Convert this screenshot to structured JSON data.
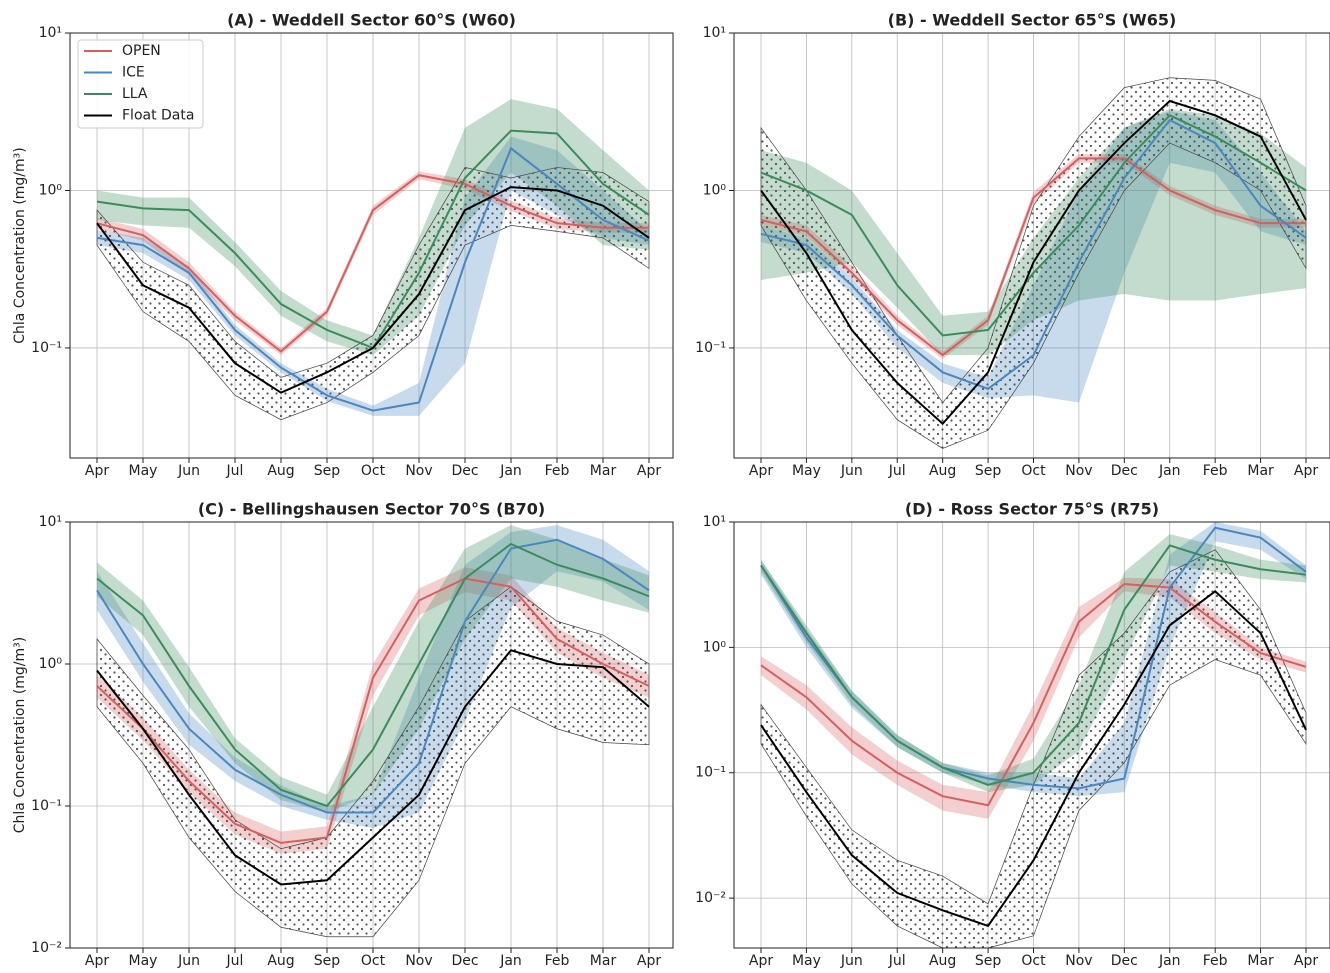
{
  "chart_data": [
    {
      "type": "line",
      "title": "(A) - Weddell Sector 60°S (W60)",
      "ylabel": "Chla Concentration (mg/m³)",
      "log_y": true,
      "grid": true,
      "legend": "upper left",
      "categories": [
        "Apr",
        "May",
        "Jun",
        "Jul",
        "Aug",
        "Sep",
        "Oct",
        "Nov",
        "Dec",
        "Jan",
        "Feb",
        "Mar",
        "Apr"
      ],
      "ylim": [
        0.02,
        10
      ],
      "yticks": [
        {
          "value": 0.1,
          "label": "10⁻¹"
        },
        {
          "value": 1,
          "label": "10⁰"
        },
        {
          "value": 10,
          "label": "10¹"
        }
      ],
      "series": [
        {
          "name": "OPEN",
          "color": "#d65f5f",
          "values": [
            0.62,
            0.52,
            0.32,
            0.16,
            0.095,
            0.17,
            0.75,
            1.25,
            1.1,
            0.8,
            0.62,
            0.58,
            0.58
          ],
          "lower": [
            0.57,
            0.48,
            0.29,
            0.15,
            0.09,
            0.16,
            0.7,
            1.18,
            1.02,
            0.74,
            0.57,
            0.54,
            0.54
          ],
          "upper": [
            0.67,
            0.57,
            0.35,
            0.17,
            0.1,
            0.18,
            0.8,
            1.32,
            1.18,
            0.86,
            0.67,
            0.62,
            0.62
          ]
        },
        {
          "name": "ICE",
          "color": "#4a87bf",
          "values": [
            0.5,
            0.45,
            0.3,
            0.13,
            0.075,
            0.05,
            0.04,
            0.045,
            0.35,
            1.85,
            1.1,
            0.65,
            0.48
          ],
          "lower": [
            0.45,
            0.4,
            0.27,
            0.12,
            0.07,
            0.046,
            0.037,
            0.037,
            0.08,
            1.0,
            0.7,
            0.5,
            0.45
          ],
          "upper": [
            0.56,
            0.5,
            0.33,
            0.14,
            0.08,
            0.055,
            0.043,
            0.06,
            0.9,
            2.2,
            1.8,
            1.0,
            0.55
          ]
        },
        {
          "name": "LLA",
          "color": "#3a8c5c",
          "values": [
            0.85,
            0.77,
            0.75,
            0.4,
            0.19,
            0.13,
            0.1,
            0.3,
            1.2,
            2.4,
            2.3,
            1.1,
            0.7
          ],
          "lower": [
            0.65,
            0.6,
            0.58,
            0.33,
            0.16,
            0.11,
            0.09,
            0.16,
            0.6,
            1.3,
            0.8,
            0.45,
            0.42
          ],
          "upper": [
            1.0,
            0.9,
            0.9,
            0.47,
            0.23,
            0.15,
            0.12,
            0.5,
            2.5,
            3.8,
            3.3,
            1.8,
            1.0
          ]
        },
        {
          "name": "Float Data",
          "color": "#000000",
          "values": [
            0.62,
            0.25,
            0.18,
            0.08,
            0.052,
            0.07,
            0.1,
            0.22,
            0.75,
            1.05,
            1.0,
            0.8,
            0.5
          ],
          "lower": [
            0.45,
            0.17,
            0.11,
            0.05,
            0.035,
            0.045,
            0.07,
            0.12,
            0.45,
            0.6,
            0.55,
            0.5,
            0.32
          ],
          "upper": [
            0.75,
            0.35,
            0.25,
            0.11,
            0.065,
            0.08,
            0.12,
            0.45,
            1.4,
            1.2,
            1.4,
            1.3,
            0.85
          ]
        }
      ]
    },
    {
      "type": "line",
      "title": "(B) - Weddell Sector 65°S (W65)",
      "log_y": true,
      "grid": true,
      "categories": [
        "Apr",
        "May",
        "Jun",
        "Jul",
        "Aug",
        "Sep",
        "Oct",
        "Nov",
        "Dec",
        "Jan",
        "Feb",
        "Mar",
        "Apr"
      ],
      "ylim": [
        0.02,
        10
      ],
      "yticks": [
        {
          "value": 0.1,
          "label": "10⁻¹"
        },
        {
          "value": 1,
          "label": "10⁰"
        },
        {
          "value": 10,
          "label": "10¹"
        }
      ],
      "series": [
        {
          "color": "#d65f5f",
          "values": [
            0.65,
            0.55,
            0.3,
            0.15,
            0.09,
            0.15,
            0.9,
            1.6,
            1.6,
            1.0,
            0.75,
            0.62,
            0.62
          ],
          "lower": [
            0.6,
            0.51,
            0.28,
            0.14,
            0.085,
            0.14,
            0.82,
            1.5,
            1.5,
            0.93,
            0.7,
            0.58,
            0.58
          ],
          "upper": [
            0.7,
            0.6,
            0.33,
            0.16,
            0.095,
            0.16,
            0.98,
            1.7,
            1.7,
            1.07,
            0.8,
            0.66,
            0.66
          ]
        },
        {
          "color": "#4a87bf",
          "values": [
            0.53,
            0.45,
            0.25,
            0.12,
            0.07,
            0.055,
            0.09,
            0.35,
            1.2,
            2.8,
            2.0,
            0.8,
            0.5
          ],
          "lower": [
            0.47,
            0.4,
            0.22,
            0.1,
            0.06,
            0.048,
            0.05,
            0.045,
            0.3,
            1.5,
            1.3,
            0.55,
            0.45
          ],
          "upper": [
            0.6,
            0.5,
            0.28,
            0.13,
            0.08,
            0.065,
            0.25,
            1.0,
            2.5,
            3.2,
            2.8,
            1.3,
            0.55
          ]
        },
        {
          "color": "#3a8c5c",
          "values": [
            1.3,
            1.0,
            0.7,
            0.25,
            0.12,
            0.13,
            0.3,
            0.6,
            1.5,
            3.0,
            2.2,
            1.5,
            1.0
          ],
          "lower": [
            0.27,
            0.3,
            0.35,
            0.18,
            0.09,
            0.09,
            0.15,
            0.2,
            0.22,
            0.2,
            0.2,
            0.22,
            0.24
          ],
          "upper": [
            1.8,
            1.5,
            1.0,
            0.4,
            0.16,
            0.17,
            0.5,
            1.2,
            2.5,
            3.3,
            3.0,
            2.3,
            1.4
          ]
        },
        {
          "color": "#000000",
          "values": [
            1.0,
            0.4,
            0.13,
            0.06,
            0.033,
            0.07,
            0.35,
            1.0,
            2.0,
            3.7,
            3.0,
            2.2,
            0.65
          ],
          "lower": [
            0.6,
            0.2,
            0.08,
            0.035,
            0.023,
            0.03,
            0.08,
            0.3,
            1.0,
            2.0,
            1.5,
            1.0,
            0.32
          ],
          "upper": [
            2.5,
            1.0,
            0.35,
            0.12,
            0.045,
            0.1,
            0.8,
            2.2,
            4.5,
            5.2,
            5.0,
            3.8,
            0.8
          ]
        }
      ]
    },
    {
      "type": "line",
      "title": "(C) - Bellingshausen Sector 70°S (B70)",
      "ylabel": "Chla Concentration (mg/m³)",
      "log_y": true,
      "grid": true,
      "categories": [
        "Apr",
        "May",
        "Jun",
        "Jul",
        "Aug",
        "Sep",
        "Oct",
        "Nov",
        "Dec",
        "Jan",
        "Feb",
        "Mar",
        "Apr"
      ],
      "ylim": [
        0.01,
        10
      ],
      "yticks": [
        {
          "value": 0.01,
          "label": "10⁻²"
        },
        {
          "value": 0.1,
          "label": "10⁻¹"
        },
        {
          "value": 1,
          "label": "10⁰"
        },
        {
          "value": 10,
          "label": "10¹"
        }
      ],
      "series": [
        {
          "color": "#d65f5f",
          "values": [
            0.7,
            0.35,
            0.15,
            0.075,
            0.055,
            0.06,
            0.8,
            2.8,
            4.0,
            3.5,
            1.5,
            1.0,
            0.7
          ],
          "lower": [
            0.58,
            0.29,
            0.125,
            0.063,
            0.046,
            0.05,
            0.6,
            2.2,
            3.2,
            2.8,
            1.2,
            0.8,
            0.58
          ],
          "upper": [
            0.84,
            0.42,
            0.18,
            0.09,
            0.066,
            0.072,
            1.0,
            3.4,
            4.8,
            4.2,
            1.8,
            1.2,
            0.84
          ]
        },
        {
          "color": "#4a87bf",
          "values": [
            3.3,
            1.0,
            0.35,
            0.18,
            0.12,
            0.09,
            0.09,
            0.2,
            2.0,
            6.5,
            7.5,
            5.5,
            3.3
          ],
          "lower": [
            2.4,
            0.75,
            0.27,
            0.15,
            0.1,
            0.08,
            0.07,
            0.09,
            0.4,
            2.5,
            4.5,
            3.8,
            2.4
          ],
          "upper": [
            4.5,
            1.4,
            0.45,
            0.22,
            0.14,
            0.1,
            0.12,
            0.8,
            5.0,
            8.5,
            9.5,
            7.5,
            4.5
          ]
        },
        {
          "color": "#3a8c5c",
          "values": [
            4.0,
            2.2,
            0.7,
            0.25,
            0.13,
            0.1,
            0.25,
            1.0,
            4.0,
            7.0,
            5.0,
            4.0,
            3.0
          ],
          "lower": [
            3.0,
            1.6,
            0.5,
            0.2,
            0.11,
            0.09,
            0.12,
            0.35,
            1.5,
            4.0,
            3.5,
            2.8,
            2.3
          ],
          "upper": [
            5.2,
            2.8,
            0.95,
            0.3,
            0.16,
            0.12,
            0.5,
            2.0,
            6.5,
            9.5,
            7.5,
            5.5,
            4.2
          ]
        },
        {
          "color": "#000000",
          "values": [
            0.9,
            0.35,
            0.12,
            0.045,
            0.028,
            0.03,
            0.06,
            0.12,
            0.5,
            1.25,
            1.0,
            0.95,
            0.5
          ],
          "lower": [
            0.5,
            0.2,
            0.06,
            0.025,
            0.014,
            0.012,
            0.012,
            0.03,
            0.2,
            0.5,
            0.35,
            0.28,
            0.27
          ],
          "upper": [
            1.5,
            0.6,
            0.25,
            0.08,
            0.05,
            0.06,
            0.15,
            0.5,
            2.0,
            3.5,
            2.0,
            1.6,
            1.0
          ]
        }
      ]
    },
    {
      "type": "line",
      "title": "(D) - Ross Sector 75°S (R75)",
      "log_y": true,
      "grid": true,
      "categories": [
        "Apr",
        "May",
        "Jun",
        "Jul",
        "Aug",
        "Sep",
        "Oct",
        "Nov",
        "Dec",
        "Jan",
        "Feb",
        "Mar",
        "Apr"
      ],
      "ylim": [
        0.004,
        10
      ],
      "yticks": [
        {
          "value": 0.01,
          "label": "10⁻²"
        },
        {
          "value": 0.1,
          "label": "10⁻¹"
        },
        {
          "value": 1,
          "label": "10⁰"
        },
        {
          "value": 10,
          "label": "10¹"
        }
      ],
      "series": [
        {
          "color": "#d65f5f",
          "values": [
            0.72,
            0.4,
            0.18,
            0.1,
            0.065,
            0.055,
            0.25,
            1.6,
            3.2,
            3.0,
            1.6,
            0.9,
            0.7
          ],
          "lower": [
            0.6,
            0.32,
            0.14,
            0.08,
            0.05,
            0.043,
            0.18,
            1.2,
            2.8,
            2.5,
            1.3,
            0.8,
            0.63
          ],
          "upper": [
            0.85,
            0.5,
            0.23,
            0.125,
            0.08,
            0.07,
            0.35,
            2.1,
            3.6,
            3.5,
            1.9,
            1.0,
            0.77
          ]
        },
        {
          "color": "#4a87bf",
          "values": [
            4.5,
            1.2,
            0.4,
            0.18,
            0.11,
            0.09,
            0.08,
            0.075,
            0.09,
            3.0,
            9.0,
            7.5,
            4.0
          ],
          "lower": [
            3.8,
            1.0,
            0.33,
            0.16,
            0.1,
            0.08,
            0.07,
            0.065,
            0.07,
            1.0,
            7.0,
            6.0,
            3.5
          ],
          "upper": [
            5.0,
            1.4,
            0.45,
            0.2,
            0.12,
            0.1,
            0.1,
            0.09,
            0.25,
            5.5,
            10,
            8.5,
            4.5
          ]
        },
        {
          "color": "#3a8c5c",
          "values": [
            4.5,
            1.3,
            0.4,
            0.18,
            0.11,
            0.08,
            0.1,
            0.25,
            2.0,
            6.5,
            5.0,
            4.2,
            3.8
          ],
          "lower": [
            4.0,
            1.1,
            0.35,
            0.16,
            0.1,
            0.07,
            0.08,
            0.15,
            0.8,
            4.5,
            4.0,
            3.5,
            3.3
          ],
          "upper": [
            5.0,
            1.5,
            0.45,
            0.2,
            0.12,
            0.095,
            0.13,
            0.5,
            4.0,
            8.0,
            6.5,
            5.0,
            4.5
          ]
        },
        {
          "color": "#000000",
          "values": [
            0.24,
            0.07,
            0.022,
            0.011,
            0.008,
            0.006,
            0.02,
            0.1,
            0.35,
            1.5,
            2.8,
            1.3,
            0.22
          ],
          "lower": [
            0.17,
            0.045,
            0.013,
            0.006,
            0.004,
            0.004,
            0.005,
            0.05,
            0.12,
            0.5,
            0.8,
            0.6,
            0.17
          ],
          "upper": [
            0.35,
            0.11,
            0.035,
            0.02,
            0.015,
            0.009,
            0.08,
            0.6,
            1.3,
            4.0,
            6.0,
            2.0,
            0.3
          ]
        }
      ]
    }
  ]
}
